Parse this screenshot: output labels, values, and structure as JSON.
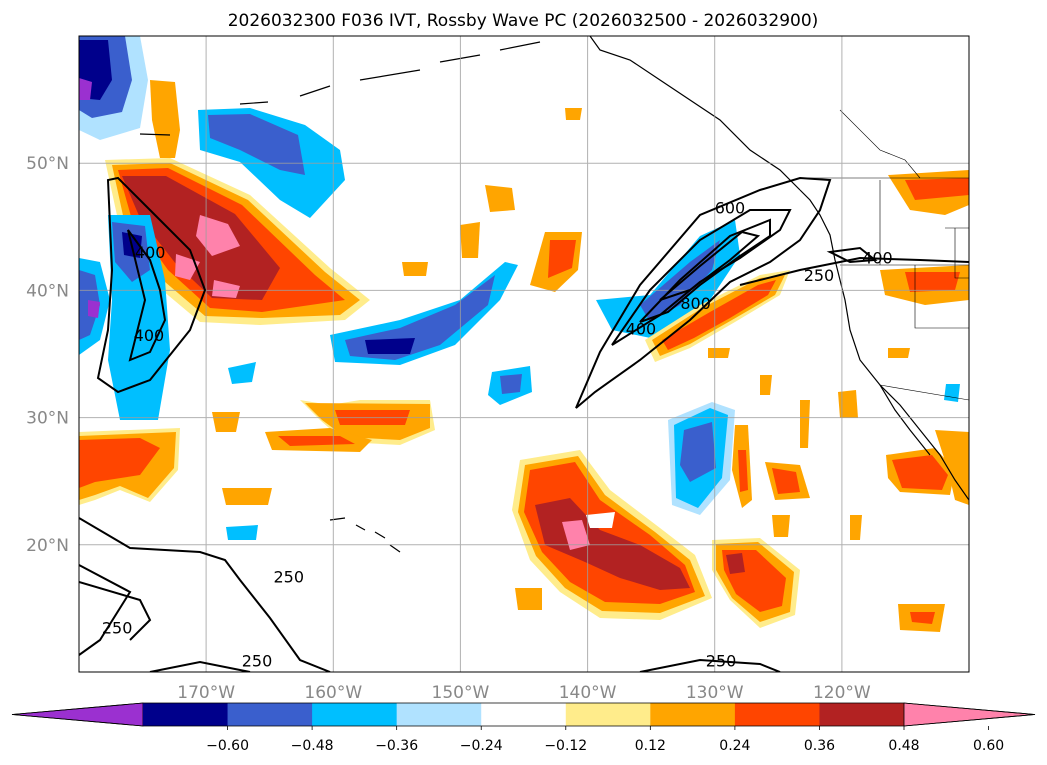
{
  "title": "2026032300 F036 IVT, Rossby Wave PC (2026032500 - 2026032900)",
  "map": {
    "projection": "PlateCarree",
    "lon_range": [
      -180,
      -110
    ],
    "lat_range": [
      10,
      60
    ],
    "gridlines": true,
    "lat_labels": [
      {
        "lat": 50,
        "label": "50°N"
      },
      {
        "lat": 40,
        "label": "40°N"
      },
      {
        "lat": 30,
        "label": "30°N"
      },
      {
        "lat": 20,
        "label": "20°N"
      }
    ],
    "lon_labels": [
      {
        "lon": -170,
        "label": "170°W"
      },
      {
        "lon": -160,
        "label": "160°W"
      },
      {
        "lon": -150,
        "label": "150°W"
      },
      {
        "lon": -140,
        "label": "140°W"
      },
      {
        "lon": -130,
        "label": "130°W"
      },
      {
        "lon": -120,
        "label": "120°W"
      }
    ]
  },
  "colorbar": {
    "orientation": "horizontal",
    "extend": "both",
    "levels": [
      -0.72,
      -0.6,
      -0.48,
      -0.36,
      -0.24,
      -0.12,
      0.12,
      0.24,
      0.36,
      0.48,
      0.6,
      0.72
    ],
    "colors": [
      "#9b30d0",
      "#00008b",
      "#3a5fcd",
      "#00bfff",
      "#b0e2ff",
      "#ffffff",
      "#ffec8b",
      "#ffa500",
      "#ff4500",
      "#b22222",
      "#ff82ab"
    ],
    "tick_labels": [
      "−0.60",
      "−0.48",
      "−0.36",
      "−0.24",
      "−0.12",
      "0.12",
      "0.24",
      "0.36",
      "0.48",
      "0.60"
    ]
  },
  "contour_labels": [
    {
      "text": "600",
      "lon": -128.8,
      "lat": 46.5
    },
    {
      "text": "400",
      "lon": -117.2,
      "lat": 42.6
    },
    {
      "text": "250",
      "lon": -121.8,
      "lat": 41.2
    },
    {
      "text": "800",
      "lon": -131.5,
      "lat": 39.0
    },
    {
      "text": "400",
      "lon": -135.8,
      "lat": 37.0
    },
    {
      "text": "400",
      "lon": -174.5,
      "lat": 36.5
    },
    {
      "text": "400",
      "lon": -174.4,
      "lat": 43.0
    },
    {
      "text": "250",
      "lon": -163.5,
      "lat": 17.5
    },
    {
      "text": "250",
      "lon": -177.0,
      "lat": 13.5
    },
    {
      "text": "250",
      "lon": -166.0,
      "lat": 10.9
    },
    {
      "text": "250",
      "lon": -129.5,
      "lat": 10.9
    }
  ],
  "chart_data": {
    "type": "filled-contour-map",
    "title": "2026032300 F036 IVT, Rossby Wave PC (2026032500 - 2026032900)",
    "variable_filled": "Rossby Wave PC",
    "variable_contoured": "IVT",
    "contour_levels": [
      250,
      400,
      600,
      800
    ],
    "filled_features": [
      {
        "region": "NW Pacific band near 50°N-38°N, 178°W-165°W",
        "max_value": 0.72
      },
      {
        "region": "Subtropical maximum near 22°N, 139°W",
        "max_value": 0.72
      },
      {
        "region": "Atmospheric river near 38°N, 133°W-126°W",
        "max_value": 0.48
      },
      {
        "region": "Negative band near 36°N, 155°W",
        "min_value": -0.6
      },
      {
        "region": "Negative area NW corner near 57°N, 178°W",
        "min_value": -0.6
      },
      {
        "region": "Negative area near 41°N, 135°W",
        "min_value": -0.36
      }
    ]
  }
}
